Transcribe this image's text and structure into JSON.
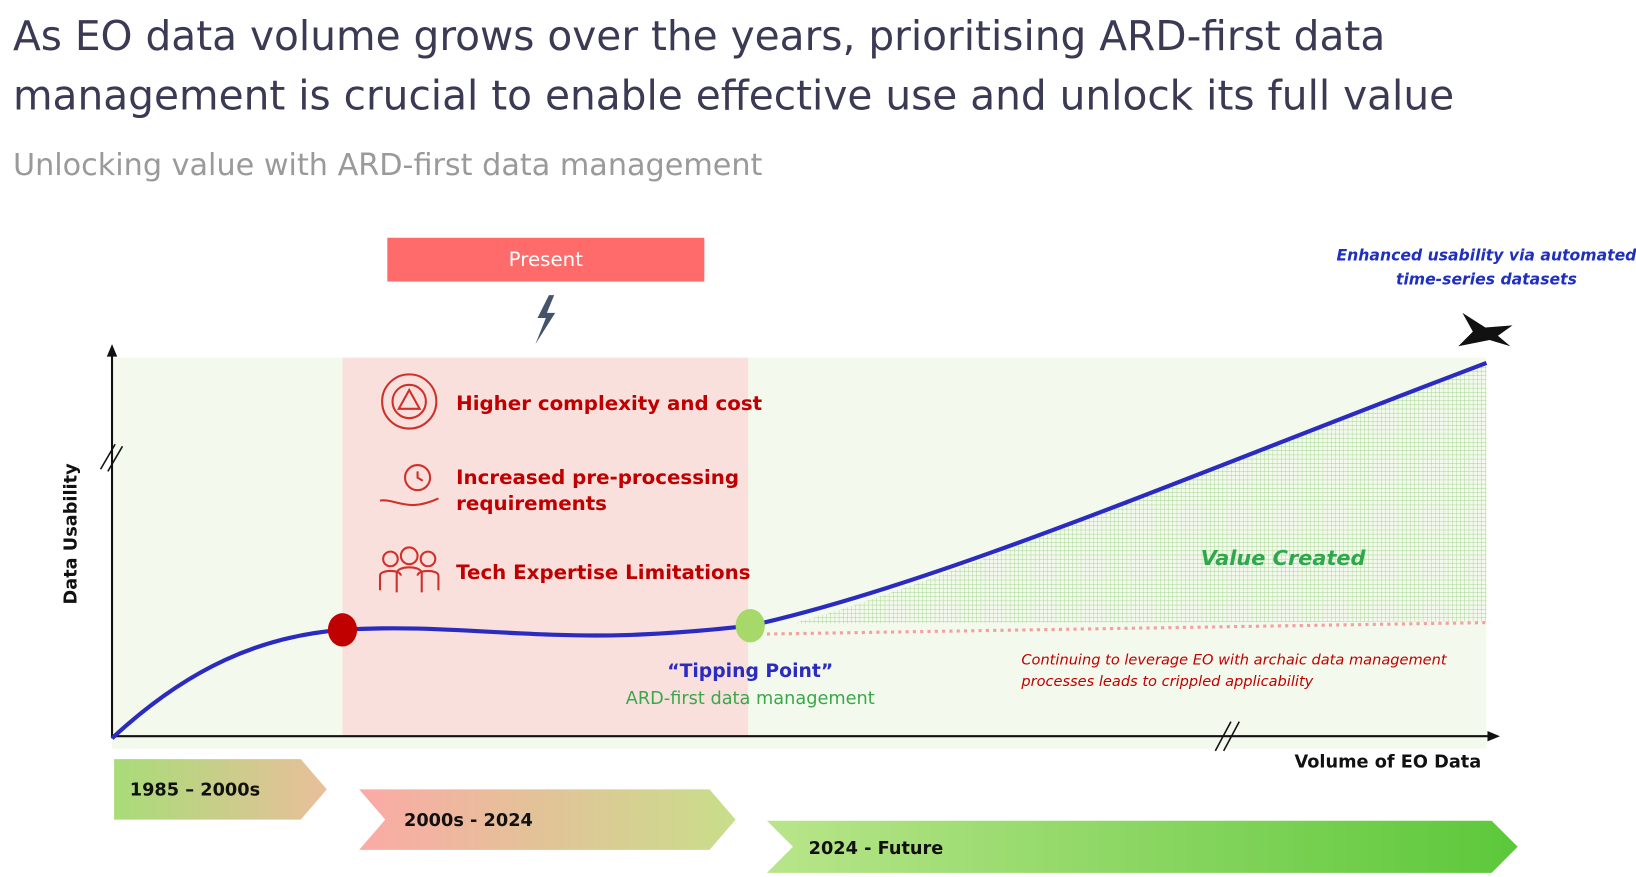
{
  "header": {
    "title_lines": [
      "As EO data volume grows over the years, prioritising ARD-first data",
      "management is crucial to enable effective use and unlock its full value"
    ],
    "subtitle": "Unlocking value with ARD-first data management"
  },
  "present": "Present",
  "challenges": [
    {
      "lines": [
        "Higher complexity and cost"
      ]
    },
    {
      "lines": [
        "Increased pre-processing",
        "requirements"
      ]
    },
    {
      "lines": [
        "Tech Expertise Limitations"
      ]
    }
  ],
  "axes": {
    "y_label": "Data Usability",
    "x_label": "Volume of EO Data"
  },
  "annotations": {
    "enhanced": [
      "Enhanced usability via automated",
      "time-series datasets"
    ],
    "value_created": "Value Created",
    "tipping_point": "“Tipping Point”",
    "tipping_sub": "ARD-first data management",
    "archaic": [
      "Continuing to leverage EO with archaic data management",
      "processes leads to crippled applicability"
    ]
  },
  "phases": [
    "1985 – 2000s",
    "2000s - 2024",
    "2024 - Future"
  ]
}
